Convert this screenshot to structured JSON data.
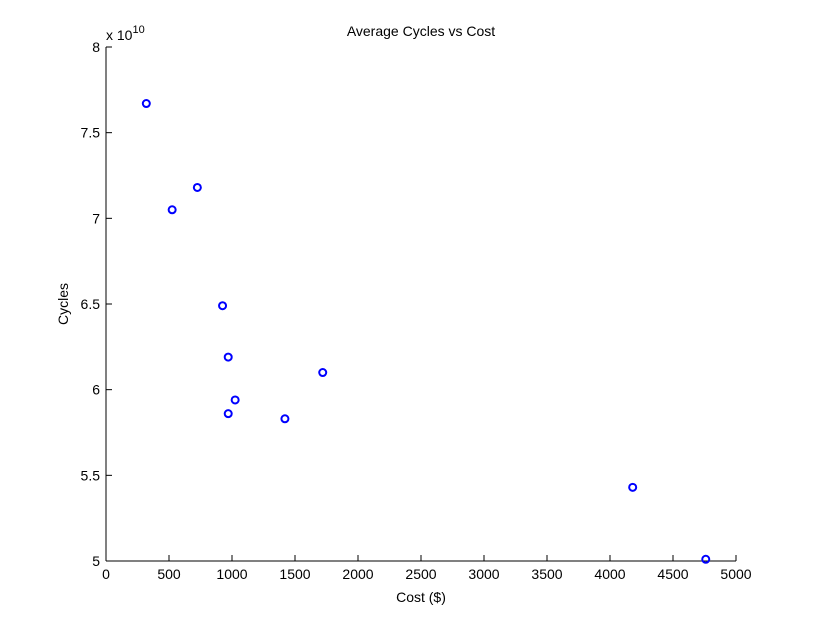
{
  "chart_data": {
    "type": "scatter",
    "title": "Average Cycles vs Cost",
    "xlabel": "Cost ($)",
    "ylabel": "Cycles",
    "xlim": [
      0,
      5000
    ],
    "ylim": [
      5.0,
      8.0
    ],
    "y_multiplier": {
      "base": "x 10",
      "exponent": "10"
    },
    "x_ticks": [
      0,
      500,
      1000,
      1500,
      2000,
      2500,
      3000,
      3500,
      4000,
      4500,
      5000
    ],
    "x_tick_labels": [
      "0",
      "500",
      "1000",
      "1500",
      "2000",
      "2500",
      "3000",
      "3500",
      "4000",
      "4500",
      "5000"
    ],
    "y_ticks": [
      5.0,
      5.5,
      6.0,
      6.5,
      7.0,
      7.5,
      8.0
    ],
    "y_tick_labels": [
      "5",
      "5.5",
      "6",
      "6.5",
      "7",
      "7.5",
      "8"
    ],
    "grid": false,
    "marker_color": "#0000ff",
    "marker": "circle-open",
    "series": [
      {
        "points": [
          {
            "x": 320,
            "y": 7.67
          },
          {
            "x": 525,
            "y": 7.05
          },
          {
            "x": 725,
            "y": 7.18
          },
          {
            "x": 925,
            "y": 6.49
          },
          {
            "x": 970,
            "y": 6.19
          },
          {
            "x": 970,
            "y": 5.86
          },
          {
            "x": 1025,
            "y": 5.94
          },
          {
            "x": 1420,
            "y": 5.83
          },
          {
            "x": 1720,
            "y": 6.1
          },
          {
            "x": 4180,
            "y": 5.43
          },
          {
            "x": 4760,
            "y": 5.01
          }
        ]
      }
    ]
  }
}
